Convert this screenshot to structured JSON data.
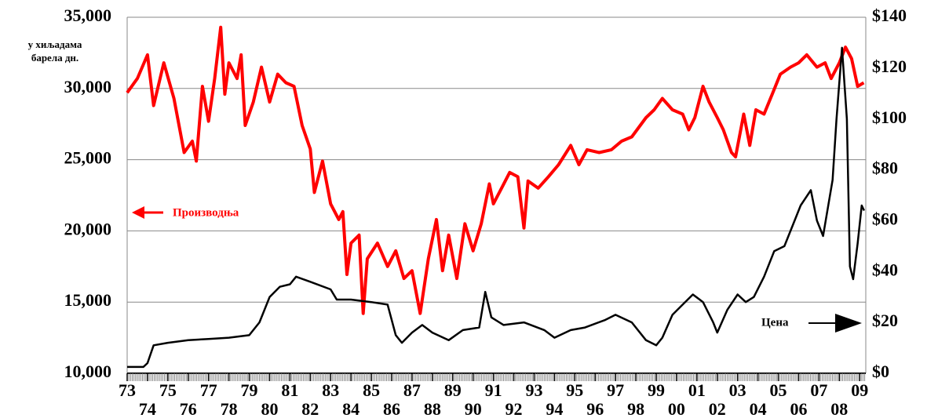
{
  "chart_data": {
    "type": "line",
    "y_label": [
      "у хиљадама",
      "барела дн."
    ],
    "annotations": [
      {
        "text": "Производња",
        "color": "#ff0000",
        "series": 0
      },
      {
        "text": "Цена",
        "color": "#000000",
        "series": 1
      }
    ],
    "xlim": [
      1973,
      2009.3
    ],
    "xticks": [
      {
        "value": 1973,
        "label": "73"
      },
      {
        "value": 1974,
        "label": "74"
      },
      {
        "value": 1975,
        "label": "75"
      },
      {
        "value": 1976,
        "label": "76"
      },
      {
        "value": 1977,
        "label": "77"
      },
      {
        "value": 1978,
        "label": "78"
      },
      {
        "value": 1979,
        "label": "79"
      },
      {
        "value": 1980,
        "label": "80"
      },
      {
        "value": 1981,
        "label": "81"
      },
      {
        "value": 1982,
        "label": "82"
      },
      {
        "value": 1983,
        "label": "83"
      },
      {
        "value": 1984,
        "label": "84"
      },
      {
        "value": 1985,
        "label": "85"
      },
      {
        "value": 1986,
        "label": "86"
      },
      {
        "value": 1987,
        "label": "87"
      },
      {
        "value": 1988,
        "label": "88"
      },
      {
        "value": 1989,
        "label": "89"
      },
      {
        "value": 1990,
        "label": "90"
      },
      {
        "value": 1991,
        "label": "91"
      },
      {
        "value": 1992,
        "label": "92"
      },
      {
        "value": 1993,
        "label": "93"
      },
      {
        "value": 1994,
        "label": "94"
      },
      {
        "value": 1995,
        "label": "95"
      },
      {
        "value": 1996,
        "label": "96"
      },
      {
        "value": 1997,
        "label": "97"
      },
      {
        "value": 1998,
        "label": "98"
      },
      {
        "value": 1999,
        "label": "99"
      },
      {
        "value": 2000,
        "label": "00"
      },
      {
        "value": 2001,
        "label": "01"
      },
      {
        "value": 2002,
        "label": "02"
      },
      {
        "value": 2003,
        "label": "03"
      },
      {
        "value": 2004,
        "label": "04"
      },
      {
        "value": 2005,
        "label": "05"
      },
      {
        "value": 2006,
        "label": "06"
      },
      {
        "value": 2007,
        "label": "07"
      },
      {
        "value": 2008,
        "label": "08"
      },
      {
        "value": 2009,
        "label": "09"
      }
    ],
    "ylim": [
      10000,
      35000
    ],
    "yticks": [
      {
        "value": 10000,
        "label": "10,000"
      },
      {
        "value": 15000,
        "label": "15,000"
      },
      {
        "value": 20000,
        "label": "20,000"
      },
      {
        "value": 25000,
        "label": "25,000"
      },
      {
        "value": 30000,
        "label": "30,000"
      },
      {
        "value": 35000,
        "label": "35,000"
      }
    ],
    "y2lim": [
      0,
      140
    ],
    "y2ticks": [
      {
        "value": 0,
        "label": "$0"
      },
      {
        "value": 20,
        "label": "$20"
      },
      {
        "value": 40,
        "label": "$40"
      },
      {
        "value": 60,
        "label": "$60"
      },
      {
        "value": 80,
        "label": "$80"
      },
      {
        "value": 100,
        "label": "$100"
      },
      {
        "value": 120,
        "label": "$120"
      },
      {
        "value": 140,
        "label": "$140"
      }
    ],
    "grid": true,
    "series": [
      {
        "name": "Производња",
        "color": "#ff0000",
        "axis": "y",
        "x": [
          1973.0,
          1973.5,
          1974.0,
          1974.3,
          1974.8,
          1975.3,
          1975.8,
          1976.2,
          1976.4,
          1976.7,
          1977.0,
          1977.3,
          1977.6,
          1977.8,
          1978.0,
          1978.4,
          1978.6,
          1978.8,
          1979.2,
          1979.6,
          1980.0,
          1980.4,
          1980.8,
          1981.2,
          1981.6,
          1982.0,
          1982.2,
          1982.6,
          1983.0,
          1983.4,
          1983.6,
          1983.8,
          1984.0,
          1984.4,
          1984.6,
          1984.8,
          1985.3,
          1985.8,
          1986.2,
          1986.6,
          1987.0,
          1987.4,
          1987.8,
          1988.2,
          1988.5,
          1988.8,
          1989.2,
          1989.6,
          1990.0,
          1990.4,
          1990.8,
          1991.0,
          1991.4,
          1991.8,
          1992.2,
          1992.5,
          1992.7,
          1993.2,
          1993.7,
          1994.2,
          1994.8,
          1995.2,
          1995.6,
          1996.2,
          1996.8,
          1997.3,
          1997.8,
          1998.5,
          1998.9,
          1999.3,
          1999.8,
          2000.3,
          2000.6,
          2000.9,
          2001.3,
          2001.6,
          2002.0,
          2002.3,
          2002.7,
          2002.9,
          2003.3,
          2003.6,
          2003.9,
          2004.3,
          2004.7,
          2005.1,
          2005.6,
          2006.0,
          2006.4,
          2006.9,
          2007.3,
          2007.6,
          2008.0,
          2008.3,
          2008.6,
          2008.9,
          2009.2
        ],
        "values": [
          29700,
          30700,
          32360,
          28800,
          31800,
          29300,
          25500,
          26300,
          24900,
          30150,
          27700,
          30700,
          34300,
          29600,
          31800,
          30700,
          32360,
          27400,
          29050,
          31500,
          29050,
          31000,
          30400,
          30150,
          27400,
          25750,
          22700,
          24900,
          21900,
          20800,
          21350,
          16940,
          19140,
          19700,
          14200,
          18040,
          19140,
          17500,
          18600,
          16660,
          17200,
          14200,
          18040,
          20800,
          17200,
          19700,
          16660,
          20500,
          18600,
          20500,
          23300,
          21900,
          23000,
          24100,
          23800,
          20200,
          23500,
          23000,
          23800,
          24650,
          26000,
          24650,
          25700,
          25500,
          25700,
          26300,
          26600,
          27950,
          28500,
          29300,
          28500,
          28200,
          27100,
          27950,
          30150,
          29050,
          27950,
          27100,
          25500,
          25200,
          28200,
          26000,
          28500,
          28200,
          29600,
          31000,
          31500,
          31800,
          32360,
          31500,
          31800,
          30700,
          31800,
          32900,
          32100,
          30150,
          30400
        ]
      },
      {
        "name": "Цена",
        "color": "#000000",
        "axis": "y2",
        "x": [
          1973.0,
          1973.8,
          1974.0,
          1974.3,
          1975.0,
          1976.0,
          1977.0,
          1978.0,
          1979.0,
          1979.5,
          1980.0,
          1980.5,
          1981.0,
          1981.3,
          1982.0,
          1983.0,
          1983.3,
          1984.0,
          1985.0,
          1985.8,
          1986.2,
          1986.5,
          1987.0,
          1987.5,
          1988.0,
          1988.8,
          1989.5,
          1990.3,
          1990.6,
          1990.9,
          1991.5,
          1992.5,
          1993.5,
          1994.0,
          1994.8,
          1995.5,
          1996.5,
          1997.0,
          1997.8,
          1998.5,
          1999.0,
          1999.3,
          1999.8,
          2000.3,
          2000.8,
          2001.3,
          2001.8,
          2002.0,
          2002.5,
          2003.0,
          2003.4,
          2003.8,
          2004.3,
          2004.8,
          2005.3,
          2005.8,
          2006.1,
          2006.6,
          2006.9,
          2007.2,
          2007.67,
          2007.86,
          2008.13,
          2008.37,
          2008.52,
          2008.68,
          2008.9,
          2009.1,
          2009.22
        ],
        "values": [
          2.5,
          2.5,
          4,
          11,
          12,
          13,
          13.5,
          14,
          15,
          20,
          30,
          34,
          35,
          38,
          36,
          33,
          29,
          29,
          28,
          27,
          15,
          12,
          16,
          19,
          16,
          13,
          17,
          18,
          32,
          22,
          19,
          20,
          17,
          14,
          17,
          18,
          21,
          23,
          20,
          13,
          11,
          14,
          23,
          27,
          31,
          28,
          20,
          16,
          25,
          31,
          28,
          30,
          38,
          48,
          50,
          60,
          66,
          72,
          60,
          54,
          76,
          100,
          128,
          100,
          42,
          37,
          51,
          66,
          64
        ]
      }
    ]
  }
}
